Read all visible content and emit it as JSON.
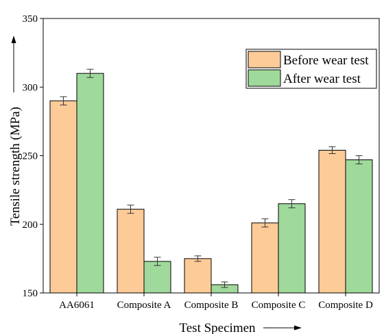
{
  "chart_data": {
    "type": "bar",
    "title": "",
    "xlabel": "Test Specimen",
    "ylabel": "Tensile strength (MPa)",
    "ylim": [
      150,
      350
    ],
    "yticks": [
      150,
      200,
      250,
      300,
      350
    ],
    "grid": false,
    "legend_position": "top-right",
    "categories": [
      "AA6061",
      "Composite A",
      "Composite B",
      "Composite C",
      "Composite D"
    ],
    "series": [
      {
        "name": "Before wear test",
        "color": "#fdcb98",
        "values": [
          290,
          211,
          175,
          201,
          254
        ],
        "error": [
          3,
          3,
          2,
          3,
          2.5
        ]
      },
      {
        "name": "After wear test",
        "color": "#9fd99b",
        "values": [
          310,
          173,
          156,
          215,
          247
        ],
        "error": [
          3,
          3,
          2,
          3,
          3
        ]
      }
    ]
  }
}
